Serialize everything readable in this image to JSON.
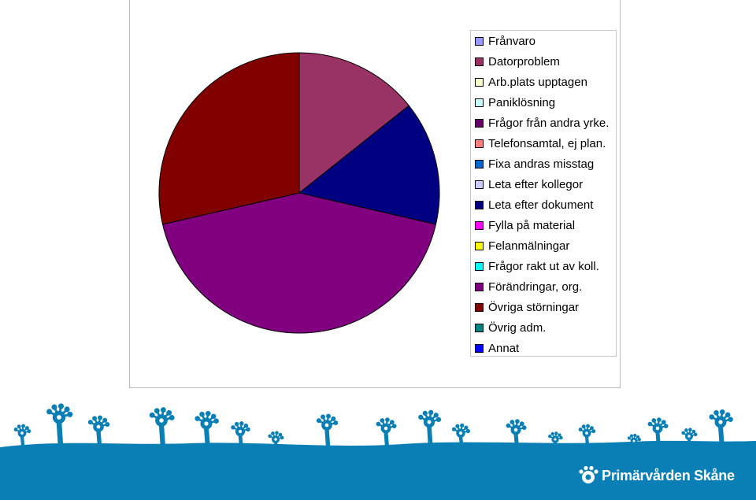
{
  "chart_data": {
    "type": "pie",
    "title": "",
    "legend_position": "right",
    "series": [
      {
        "labels": [
          "Frånvaro",
          "Datorproblem",
          "Arb.plats upptagen",
          "Paniklösning",
          "Frågor från andra yrke.",
          "Telefonsamtal, ej plan.",
          "Fixa andras misstag",
          "Leta efter kollegor",
          "Leta efter dokument",
          "Fylla på material",
          "Felanmälningar",
          "Frågor rakt ut av koll.",
          "Förändringar, org.",
          "Övriga störningar",
          "Övrig adm.",
          "Annat"
        ],
        "values": [
          0,
          14.3,
          0,
          0,
          0,
          0,
          0,
          0,
          14.3,
          0,
          0,
          0,
          42.8,
          28.6,
          0,
          0
        ],
        "colors": [
          "#9999ff",
          "#993366",
          "#ffffcc",
          "#ccffff",
          "#660066",
          "#ff8080",
          "#0066cc",
          "#ccccff",
          "#000080",
          "#ff00ff",
          "#ffff00",
          "#00ffff",
          "#800080",
          "#800000",
          "#008080",
          "#0000ff"
        ]
      }
    ]
  },
  "footer": {
    "brand_name": "Primärvården Skåne",
    "band_color": "#0a7fb5"
  }
}
